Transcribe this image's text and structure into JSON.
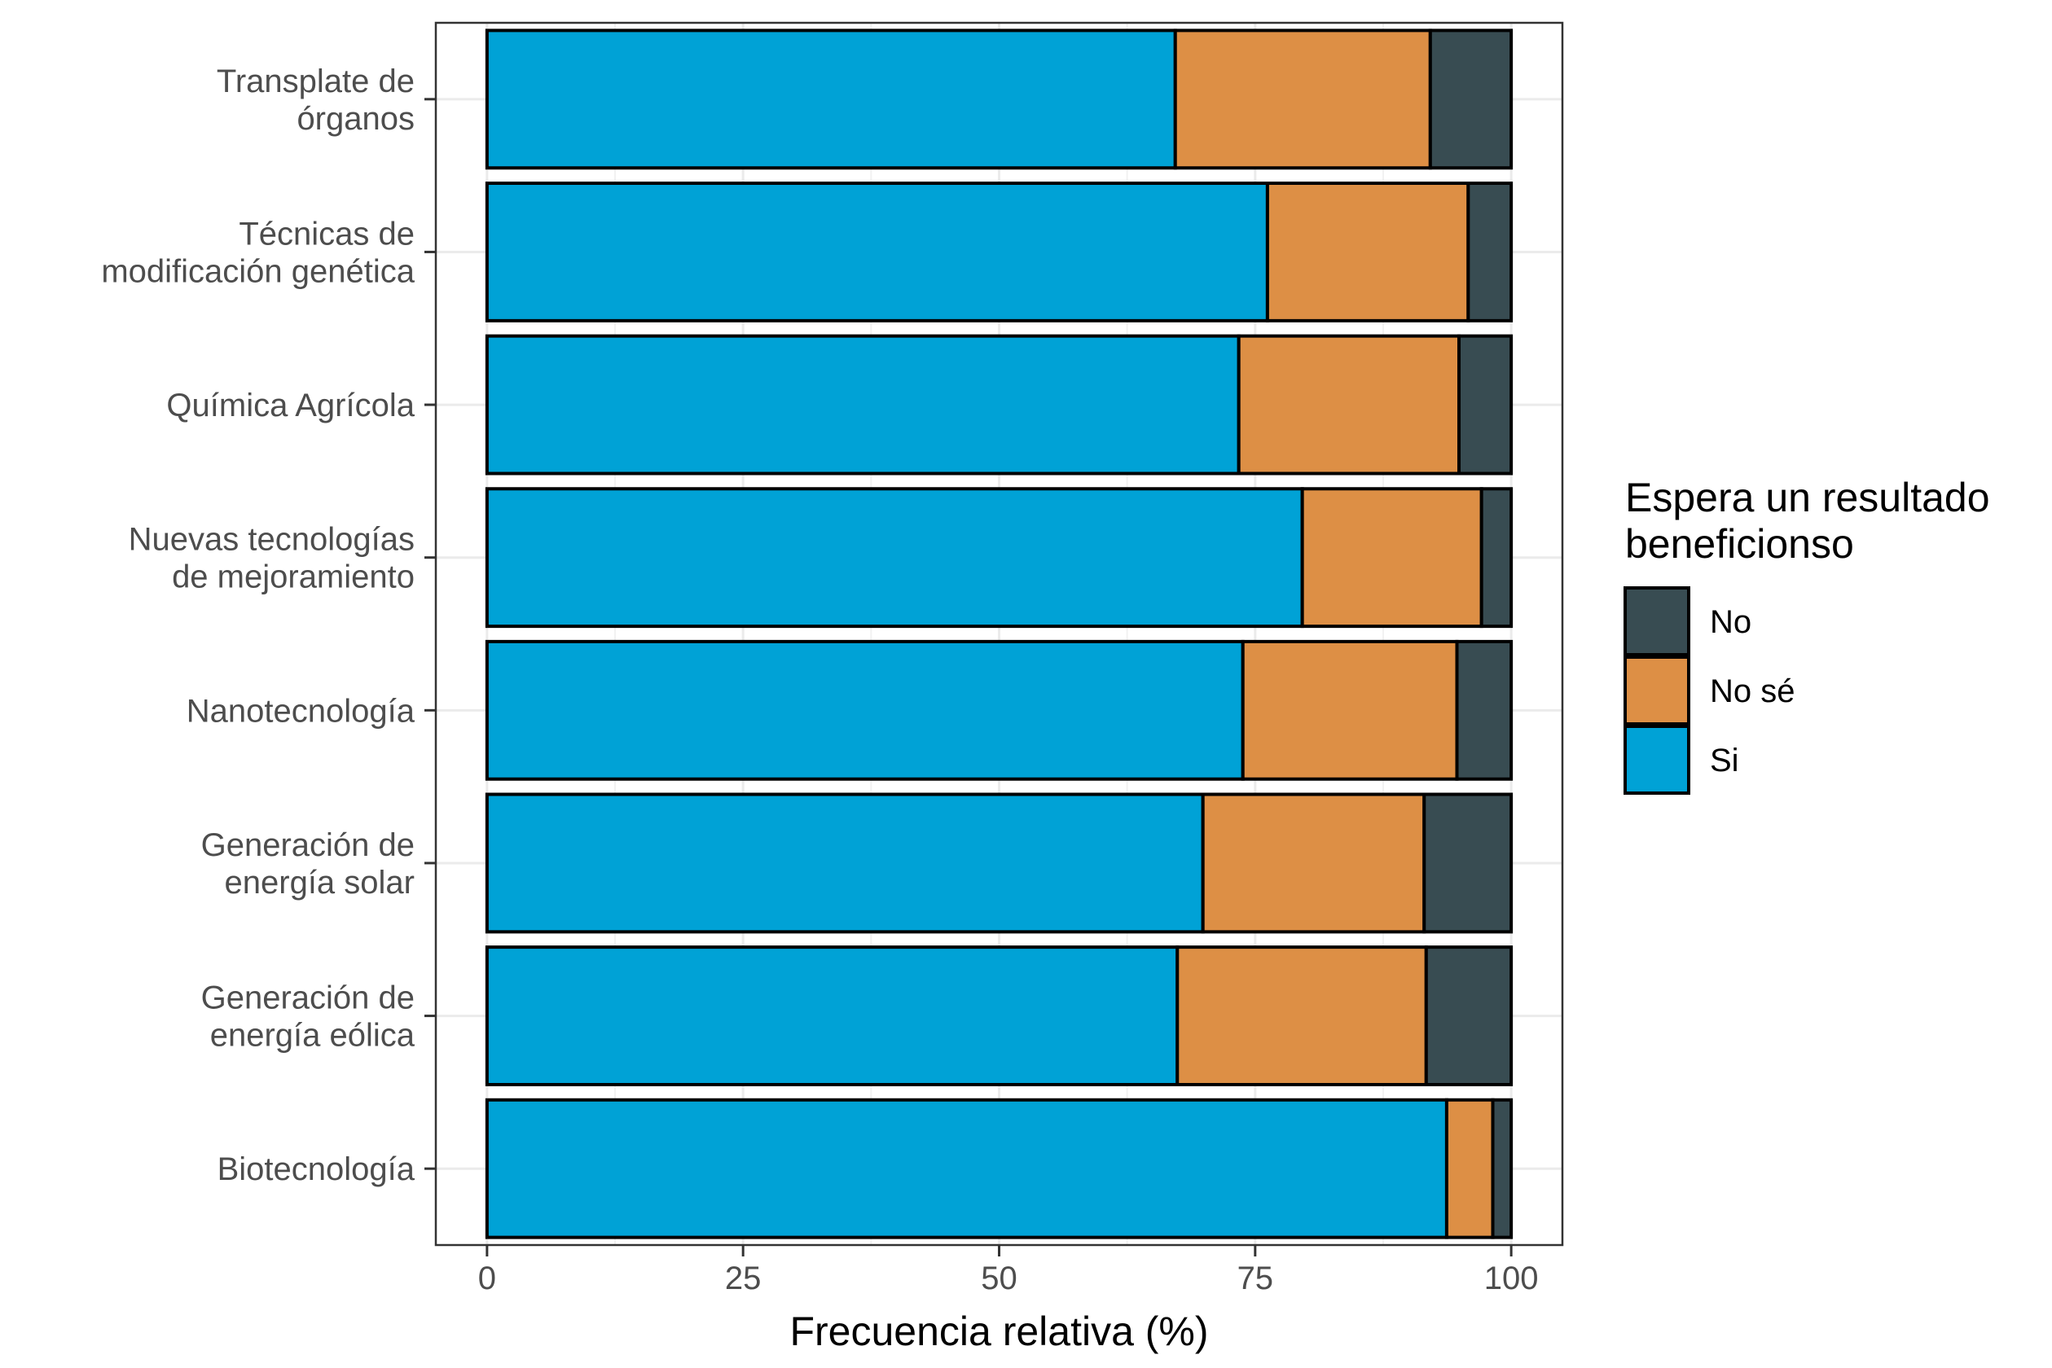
{
  "chart_data": {
    "type": "bar",
    "orientation": "horizontal",
    "stacked": true,
    "categories": [
      [
        "Transplate de",
        "órganos"
      ],
      [
        "Técnicas de",
        "modificación genética"
      ],
      [
        "Química Agrícola"
      ],
      [
        "Nuevas tecnologías",
        "de mejoramiento"
      ],
      [
        "Nanotecnología"
      ],
      [
        "Generación de",
        "energía solar"
      ],
      [
        "Generación de",
        "energía eólica"
      ],
      [
        "Biotecnología"
      ]
    ],
    "series": [
      {
        "name": "Si",
        "color": "#00A2D6",
        "values": [
          67.2,
          76.2,
          73.4,
          79.6,
          73.8,
          69.9,
          67.4,
          93.7
        ]
      },
      {
        "name": "No sé",
        "color": "#DD8F45",
        "values": [
          24.9,
          19.6,
          21.5,
          17.5,
          20.9,
          21.6,
          24.3,
          4.5
        ]
      },
      {
        "name": "No",
        "color": "#384C52",
        "values": [
          7.9,
          4.2,
          5.1,
          2.9,
          5.3,
          8.5,
          8.3,
          1.8
        ]
      }
    ],
    "xlabel": "Frecuencia relativa (%)",
    "ylabel": "",
    "xlim": [
      -5,
      105
    ],
    "xticks": [
      "0",
      "25",
      "50",
      "75",
      "100"
    ],
    "grid": true,
    "legend": {
      "title": [
        "Espera un resultado",
        "beneficionso"
      ],
      "position": "right",
      "items": [
        {
          "label": "No",
          "color": "#384C52"
        },
        {
          "label": "No sé",
          "color": "#DD8F45"
        },
        {
          "label": "Si",
          "color": "#00A2D6"
        }
      ]
    }
  }
}
